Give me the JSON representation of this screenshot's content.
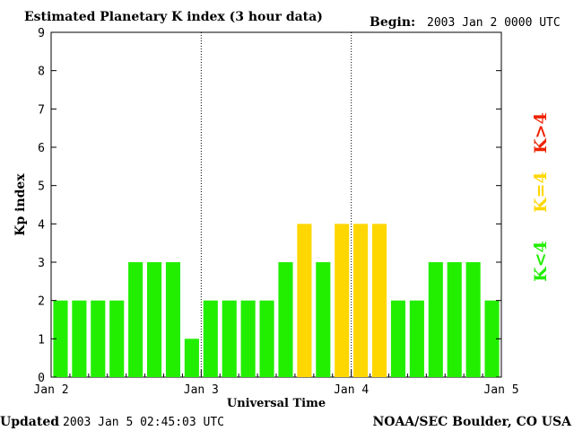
{
  "header": {
    "title": "Estimated Planetary K index (3 hour data)",
    "begin_label": "Begin:",
    "begin_value": "2003 Jan 2 0000 UTC"
  },
  "footer": {
    "updated_label": "Updated",
    "updated_value": "2003 Jan  5 02:45:03 UTC",
    "source": "NOAA/SEC Boulder, CO USA"
  },
  "legend": {
    "items": [
      {
        "label": "K<4",
        "color": "#22ee00"
      },
      {
        "label": "K=4",
        "color": "#ffd700"
      },
      {
        "label": "K>4",
        "color": "#ee2200"
      }
    ]
  },
  "colors": {
    "low": "#22ee00",
    "moderate": "#ffd700",
    "high": "#ee2200"
  },
  "chart_data": {
    "type": "bar",
    "title": "Estimated Planetary K index (3 hour data)",
    "xlabel": "Universal Time",
    "ylabel": "Kp index",
    "ylim": [
      0,
      9
    ],
    "yticks": [
      0,
      1,
      2,
      3,
      4,
      5,
      6,
      7,
      8,
      9
    ],
    "xticks": [
      "Jan 2",
      "Jan 3",
      "Jan 4",
      "Jan 5"
    ],
    "day_dividers": [
      "Jan 3",
      "Jan 4"
    ],
    "grid": false,
    "legend_placement": "right",
    "interval_hours": 3,
    "values": [
      2,
      2,
      2,
      2,
      3,
      3,
      3,
      1,
      2,
      2,
      2,
      2,
      3,
      4,
      3,
      4,
      4,
      4,
      2,
      2,
      3,
      3,
      3,
      2
    ]
  }
}
